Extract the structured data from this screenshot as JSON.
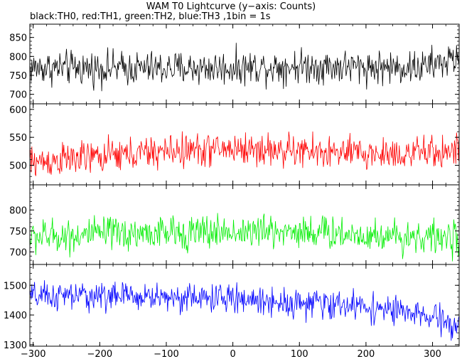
{
  "chart_data": {
    "type": "line",
    "title": "WAM T0 Lightcurve (y−axis: Counts)",
    "subtitle": "black:TH0, red:TH1, green:TH2, blue:TH3 ,1bin = 1s",
    "xlabel": "",
    "ylabel": "",
    "xlim": [
      -305,
      340
    ],
    "x_ticks": [
      -300,
      -200,
      -100,
      0,
      100,
      200,
      300
    ],
    "grid": false,
    "panels": [
      {
        "name": "TH0",
        "color": "#000000",
        "ylim": [
          675,
          885
        ],
        "y_ticks": [
          700,
          750,
          800,
          850
        ],
        "mean_profile": [
          [
            -305,
            770
          ],
          [
            -100,
            768
          ],
          [
            0,
            770
          ],
          [
            100,
            775
          ],
          [
            200,
            772
          ],
          [
            280,
            770
          ],
          [
            340,
            795
          ]
        ],
        "noise_amplitude": 42,
        "x_step": 1
      },
      {
        "name": "TH1",
        "color": "#ff0000",
        "ylim": [
          465,
          610
        ],
        "y_ticks": [
          500,
          550,
          600
        ],
        "mean_profile": [
          [
            -305,
            505
          ],
          [
            -200,
            515
          ],
          [
            -100,
            525
          ],
          [
            0,
            530
          ],
          [
            100,
            525
          ],
          [
            200,
            520
          ],
          [
            300,
            522
          ],
          [
            340,
            528
          ]
        ],
        "noise_amplitude": 28,
        "x_step": 1
      },
      {
        "name": "TH2",
        "color": "#00ee00",
        "ylim": [
          670,
          860
        ],
        "y_ticks": [
          700,
          750,
          800
        ],
        "mean_profile": [
          [
            -305,
            735
          ],
          [
            -200,
            742
          ],
          [
            -100,
            745
          ],
          [
            0,
            748
          ],
          [
            100,
            750
          ],
          [
            200,
            740
          ],
          [
            300,
            735
          ],
          [
            340,
            730
          ]
        ],
        "noise_amplitude": 38,
        "x_step": 1
      },
      {
        "name": "TH3",
        "color": "#0000ff",
        "ylim": [
          1295,
          1570
        ],
        "y_ticks": [
          1300,
          1400,
          1500
        ],
        "mean_profile": [
          [
            -305,
            1460
          ],
          [
            -200,
            1465
          ],
          [
            -100,
            1460
          ],
          [
            0,
            1455
          ],
          [
            100,
            1440
          ],
          [
            200,
            1430
          ],
          [
            300,
            1390
          ],
          [
            340,
            1360
          ]
        ],
        "noise_amplitude": 45,
        "x_step": 1
      }
    ]
  }
}
